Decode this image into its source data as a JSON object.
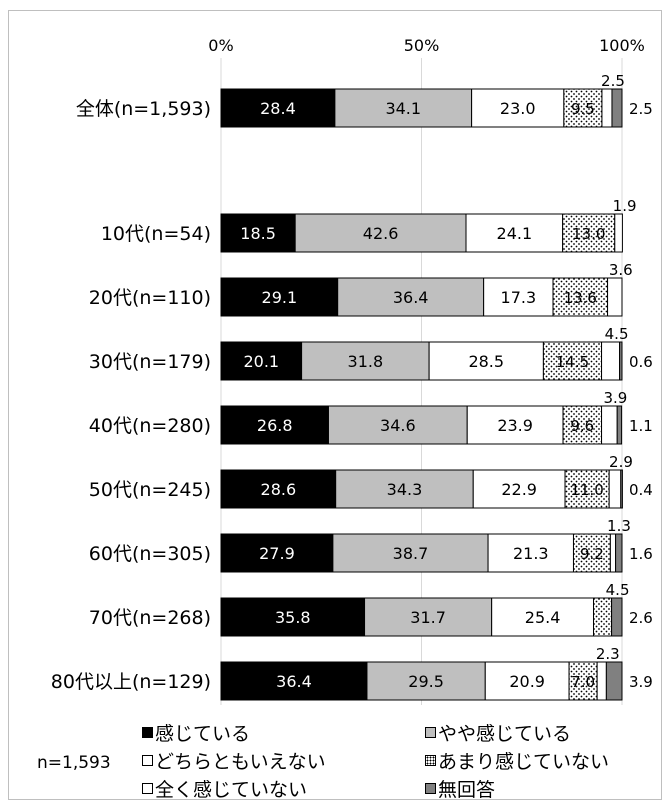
{
  "chart_data": {
    "type": "bar",
    "orientation": "horizontal",
    "stacked": true,
    "x_ticks": [
      "0%",
      "50%",
      "100%"
    ],
    "xlim": [
      0,
      100
    ],
    "grid": true,
    "categories": [
      "全体(n=1,593)",
      "10代(n=54)",
      "20代(n=110)",
      "30代(n=179)",
      "40代(n=280)",
      "50代(n=245)",
      "60代(n=305)",
      "70代(n=268)",
      "80代以上(n=129)"
    ],
    "series": [
      {
        "name": "感じている",
        "color": "#000000",
        "values": [
          28.4,
          18.5,
          29.1,
          20.1,
          26.8,
          28.6,
          27.9,
          35.8,
          36.4
        ]
      },
      {
        "name": "やや感じている",
        "color": "#bfbfbf",
        "values": [
          34.1,
          42.6,
          36.4,
          31.8,
          34.6,
          34.3,
          38.7,
          31.7,
          29.5
        ]
      },
      {
        "name": "どちらともいえない",
        "color": "#ffffff",
        "values": [
          23.0,
          24.1,
          17.3,
          28.5,
          23.9,
          22.9,
          21.3,
          25.4,
          20.9
        ]
      },
      {
        "name": "あまり感じていない",
        "color": "#ffffff",
        "pattern": "dots",
        "values": [
          9.5,
          13.0,
          13.6,
          14.5,
          9.6,
          11.0,
          9.2,
          4.5,
          7.0
        ]
      },
      {
        "name": "全く感じていない",
        "color": "#ffffff",
        "values": [
          2.5,
          1.9,
          3.6,
          4.5,
          3.9,
          2.9,
          1.3,
          0.0,
          2.3
        ]
      },
      {
        "name": "無回答",
        "color": "#808080",
        "values": [
          2.5,
          0.0,
          0.0,
          0.6,
          1.1,
          0.4,
          1.6,
          2.6,
          3.9
        ]
      }
    ],
    "labels": {
      "s0": [
        "28.4",
        "18.5",
        "29.1",
        "20.1",
        "26.8",
        "28.6",
        "27.9",
        "35.8",
        "36.4"
      ],
      "s1": [
        "34.1",
        "42.6",
        "36.4",
        "31.8",
        "34.6",
        "34.3",
        "38.7",
        "31.7",
        "29.5"
      ],
      "s2": [
        "23.0",
        "24.1",
        "17.3",
        "28.5",
        "23.9",
        "22.9",
        "21.3",
        "25.4",
        "20.9"
      ],
      "s3": [
        "9.5",
        "13.0",
        "13.6",
        "14.5",
        "9.6",
        "11.0",
        "9.2",
        "",
        "7.0"
      ],
      "above": [
        "2.5",
        "1.9",
        "3.6",
        "4.5",
        "3.9",
        "2.9",
        "1.3",
        "4.5",
        "2.3"
      ],
      "right": [
        "2.5",
        "",
        "",
        "0.6",
        "1.1",
        "0.4",
        "1.6",
        "2.6",
        "3.9"
      ]
    }
  },
  "legend": {
    "items": [
      "感じている",
      "やや感じている",
      "どちらともいえない",
      "あまり感じていない",
      "全く感じていない",
      "無回答"
    ],
    "note": "n=1,593"
  }
}
